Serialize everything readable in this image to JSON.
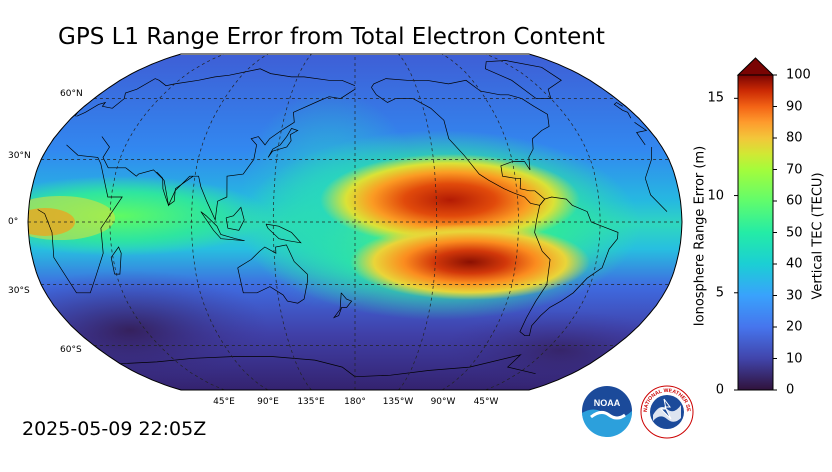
{
  "title": "GPS L1 Range Error from Total Electron Content",
  "timestamp": "2025-05-09 22:05Z",
  "map": {
    "lat_labels": [
      {
        "text": "60°N",
        "lat": 60
      },
      {
        "text": "30°N",
        "lat": 30
      },
      {
        "text": "0°",
        "lat": 0
      },
      {
        "text": "30°S",
        "lat": -30
      },
      {
        "text": "60°S",
        "lat": -60
      }
    ],
    "lon_labels": [
      {
        "text": "45°E",
        "lon": 45
      },
      {
        "text": "90°E",
        "lon": 90
      },
      {
        "text": "135°E",
        "lon": 135
      },
      {
        "text": "180°",
        "lon": 180
      },
      {
        "text": "135°W",
        "lon": -135
      },
      {
        "text": "90°W",
        "lon": -90
      },
      {
        "text": "45°W",
        "lon": -45
      }
    ],
    "projection": "Robinson",
    "central_longitude": 180
  },
  "colorbar": {
    "left_label": "Ionosphere Range Error (m)",
    "right_label": "Vertical TEC (TECU)",
    "left_ticks": [
      "0",
      "5",
      "10",
      "15"
    ],
    "left_values": [
      0,
      5,
      10,
      15
    ],
    "left_range": [
      0,
      16.2
    ],
    "right_ticks": [
      "0",
      "10",
      "20",
      "30",
      "40",
      "50",
      "60",
      "70",
      "80",
      "90",
      "100"
    ],
    "right_values": [
      0,
      10,
      20,
      30,
      40,
      50,
      60,
      70,
      80,
      90,
      100
    ],
    "right_range": [
      0,
      100
    ],
    "extend": "max",
    "colormap": "turbo"
  },
  "logos": {
    "noaa": "NOAA",
    "nws": "NATIONAL WEATHER SERVICE"
  },
  "colors": {
    "low": "#30123b",
    "mid": "#1ae4b6",
    "high": "#7a0403"
  }
}
